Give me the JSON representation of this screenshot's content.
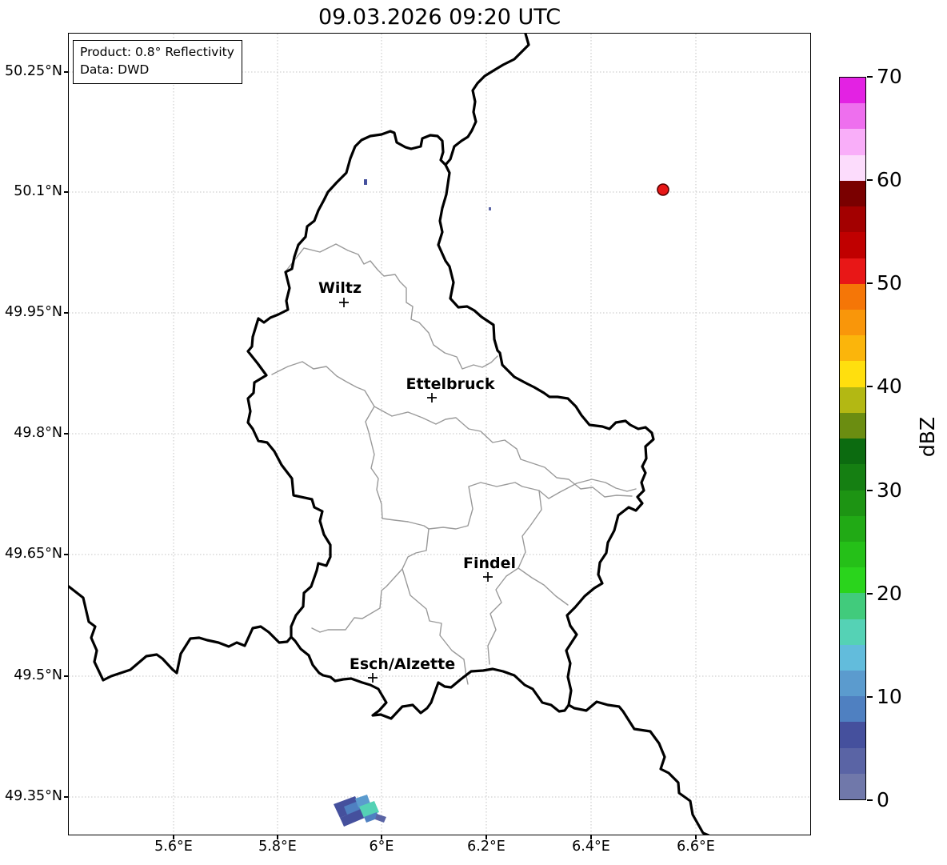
{
  "title": "09.03.2026 09:20 UTC",
  "info_box": {
    "line1": "Product: 0.8° Reflectivity",
    "line2": "Data: DWD"
  },
  "axis": {
    "y_ticks": [
      "50.25°N",
      "50.1°N",
      "49.95°N",
      "49.8°N",
      "49.65°N",
      "49.5°N",
      "49.35°N"
    ],
    "x_ticks": [
      "5.6°E",
      "5.8°E",
      "6°E",
      "6.2°E",
      "6.4°E",
      "6.6°E"
    ]
  },
  "cities": [
    {
      "name": "Wiltz"
    },
    {
      "name": "Ettelbruck"
    },
    {
      "name": "Findel"
    },
    {
      "name": "Esch/Alzette"
    }
  ],
  "colorbar": {
    "unit_label": "dBZ",
    "ticks": [
      "70",
      "60",
      "50",
      "40",
      "30",
      "20",
      "10",
      "0"
    ],
    "segments_top_to_bottom": [
      "#e322e3",
      "#ee6fee",
      "#f9aef9",
      "#fcdcfc",
      "#7a0000",
      "#a30000",
      "#c00000",
      "#e81717",
      "#f57607",
      "#f9960a",
      "#fbb50b",
      "#ffdf0e",
      "#b3b813",
      "#6b8d11",
      "#0c6b10",
      "#157f12",
      "#1d9413",
      "#21aa15",
      "#25c018",
      "#2ad41c",
      "#41cb7c",
      "#55d2b5",
      "#62bcdc",
      "#5b9bce",
      "#4f80c1",
      "#45509d",
      "#5a64a5",
      "#7078aa"
    ]
  },
  "map_colors": {
    "country_border": "#000000",
    "district_border": "#9a9a9a",
    "gridline": "#c4c4c4"
  },
  "radar": {
    "dot_fill": "#e81717",
    "dot_edge": "#550000",
    "echo_colors": {
      "dark_blue": "#45509d",
      "blue": "#4f80c1",
      "sky": "#5b9bce",
      "teal": "#55d2b5",
      "slate": "#5a64a5"
    }
  }
}
